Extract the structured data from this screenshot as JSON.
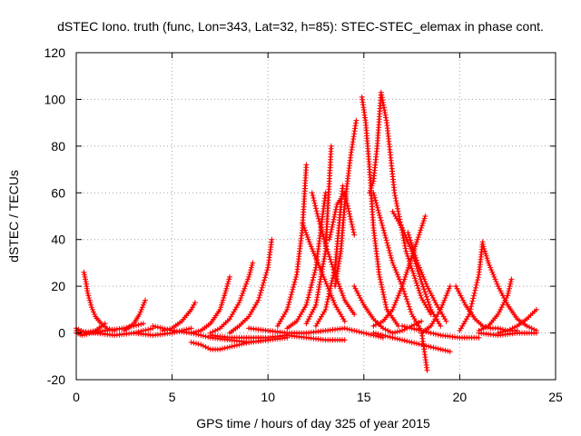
{
  "chart_data": {
    "type": "line",
    "title": "dSTEC Iono. truth (func, Lon=343, Lat=32, h=85): STEC-STEC_elemax in phase cont.",
    "xlabel": "GPS time / hours of day 325 of year 2015",
    "ylabel": "dSTEC  / TECUs",
    "xlim": [
      0,
      25
    ],
    "ylim": [
      -20,
      120
    ],
    "xticks": [
      0,
      5,
      10,
      15,
      20,
      25
    ],
    "yticks": [
      -20,
      0,
      20,
      40,
      60,
      80,
      100,
      120
    ],
    "grid": true,
    "legend": "none",
    "marker": "+",
    "color": "#ff0000",
    "series": [
      {
        "x": [
          0.0,
          0.5,
          1.0,
          1.5
        ],
        "y": [
          2,
          0,
          1,
          4
        ]
      },
      {
        "x": [
          0.0,
          0.3,
          0.8,
          1.5,
          2.5,
          3.5
        ],
        "y": [
          0,
          -1,
          0,
          1,
          2,
          4
        ]
      },
      {
        "x": [
          0.0,
          1.0,
          2.0,
          3.0,
          4.0
        ],
        "y": [
          1,
          0,
          -1,
          0,
          2
        ]
      },
      {
        "x": [
          0.4,
          0.5,
          0.6,
          0.8,
          1.0,
          1.3,
          1.6,
          2.0
        ],
        "y": [
          26,
          22,
          17,
          11,
          7,
          4,
          2,
          1
        ]
      },
      {
        "x": [
          2.5,
          3.0,
          3.3,
          3.6
        ],
        "y": [
          1,
          4,
          8,
          14
        ]
      },
      {
        "x": [
          3.0,
          4.0,
          5.0,
          6.0
        ],
        "y": [
          0,
          -1,
          0,
          2
        ]
      },
      {
        "x": [
          4.5,
          5.0,
          5.5,
          6.0,
          6.2
        ],
        "y": [
          1,
          2,
          5,
          10,
          13
        ]
      },
      {
        "x": [
          4.0,
          5.0,
          6.0,
          7.0,
          8.0,
          9.0,
          10.0
        ],
        "y": [
          3,
          1,
          0,
          -2,
          -3,
          -4,
          -3
        ]
      },
      {
        "x": [
          6.0,
          6.5,
          7.0,
          7.5,
          7.8,
          8.0
        ],
        "y": [
          0,
          1,
          4,
          10,
          18,
          24
        ]
      },
      {
        "x": [
          7.0,
          7.5,
          8.0,
          8.5,
          9.0,
          9.2
        ],
        "y": [
          0,
          2,
          6,
          13,
          24,
          30
        ]
      },
      {
        "x": [
          8.0,
          8.5,
          9.0,
          9.5,
          10.0,
          10.2
        ],
        "y": [
          0,
          3,
          7,
          14,
          28,
          40
        ]
      },
      {
        "x": [
          6.0,
          6.5,
          7.0,
          7.5,
          8.0,
          9.0,
          10.0,
          11.0
        ],
        "y": [
          -4,
          -5,
          -7,
          -7,
          -6,
          -4,
          -3,
          -2
        ]
      },
      {
        "x": [
          7.0,
          8.0,
          9.0,
          10.0,
          11.0,
          12.0,
          13.0,
          14.0
        ],
        "y": [
          -1,
          -2,
          -2,
          -2,
          -1,
          -2,
          -3,
          -3
        ]
      },
      {
        "x": [
          10.5,
          11.0,
          11.5,
          11.8,
          12.0
        ],
        "y": [
          3,
          10,
          25,
          45,
          72
        ]
      },
      {
        "x": [
          11.0,
          11.5,
          12.0,
          12.5,
          13.0
        ],
        "y": [
          2,
          5,
          12,
          28,
          60
        ]
      },
      {
        "x": [
          11.8,
          12.2,
          12.6,
          13.0,
          13.5,
          14.0
        ],
        "y": [
          47,
          38,
          30,
          22,
          12,
          5
        ]
      },
      {
        "x": [
          12.3,
          12.6,
          13.0,
          13.5,
          14.0,
          14.5
        ],
        "y": [
          60,
          50,
          38,
          25,
          14,
          8
        ]
      },
      {
        "x": [
          12.0,
          12.5,
          13.0,
          13.3
        ],
        "y": [
          4,
          12,
          35,
          80
        ]
      },
      {
        "x": [
          12.5,
          13.0,
          13.5,
          13.9
        ],
        "y": [
          3,
          10,
          28,
          63
        ]
      },
      {
        "x": [
          13.5,
          13.8,
          14.0,
          14.3,
          14.6
        ],
        "y": [
          20,
          35,
          55,
          75,
          91
        ]
      },
      {
        "x": [
          13.2,
          13.6,
          14.0,
          14.5
        ],
        "y": [
          40,
          55,
          60,
          42
        ]
      },
      {
        "x": [
          14.5,
          15.0,
          15.5,
          16.0,
          16.5,
          17.0,
          17.5,
          18.0
        ],
        "y": [
          20,
          12,
          6,
          2,
          0,
          1,
          3,
          5
        ]
      },
      {
        "x": [
          14.9,
          15.1,
          15.3,
          15.5,
          15.8,
          16.2,
          16.8
        ],
        "y": [
          101,
          90,
          70,
          45,
          25,
          10,
          3
        ]
      },
      {
        "x": [
          15.3,
          15.5,
          15.7,
          15.9,
          16.2,
          16.6,
          17.2,
          18.0,
          18.5
        ],
        "y": [
          60,
          65,
          80,
          103,
          90,
          60,
          35,
          15,
          8
        ]
      },
      {
        "x": [
          15.5,
          16.0,
          16.5,
          17.0,
          17.5,
          18.0,
          18.3
        ],
        "y": [
          60,
          45,
          30,
          20,
          8,
          1,
          -16
        ]
      },
      {
        "x": [
          16.5,
          17.0,
          17.5,
          18.0,
          18.5,
          19.0
        ],
        "y": [
          52,
          45,
          35,
          22,
          10,
          3
        ]
      },
      {
        "x": [
          17.3,
          17.8,
          18.3,
          18.8,
          19.3
        ],
        "y": [
          43,
          30,
          20,
          12,
          5
        ]
      },
      {
        "x": [
          18.2,
          17.8,
          17.4,
          17.0,
          16.5,
          16.0,
          15.5
        ],
        "y": [
          50,
          40,
          30,
          20,
          10,
          5,
          3
        ]
      },
      {
        "x": [
          15.5,
          16.5,
          17.5,
          18.5,
          19.5
        ],
        "y": [
          0,
          -2,
          -4,
          -6,
          -8
        ]
      },
      {
        "x": [
          17.0,
          18.0,
          19.0,
          20.0,
          21.0
        ],
        "y": [
          3,
          1,
          -1,
          -2,
          -2
        ]
      },
      {
        "x": [
          18.0,
          18.5,
          19.0,
          19.5
        ],
        "y": [
          0,
          3,
          10,
          20
        ]
      },
      {
        "x": [
          19.8,
          20.3,
          20.8,
          21.2,
          21.6,
          22.0,
          22.5,
          23.0
        ],
        "y": [
          20,
          12,
          6,
          3,
          2,
          2,
          1,
          1
        ]
      },
      {
        "x": [
          20.0,
          20.5,
          21.0,
          21.2
        ],
        "y": [
          1,
          8,
          25,
          39
        ]
      },
      {
        "x": [
          21.2,
          21.5,
          22.0,
          22.5,
          23.0,
          23.5,
          24.0
        ],
        "y": [
          38,
          30,
          20,
          12,
          6,
          3,
          1
        ]
      },
      {
        "x": [
          21.0,
          21.5,
          22.0,
          22.5,
          22.7
        ],
        "y": [
          1,
          3,
          8,
          16,
          23
        ]
      },
      {
        "x": [
          22.0,
          22.5,
          23.0,
          23.5,
          24.0
        ],
        "y": [
          0,
          1,
          3,
          6,
          10
        ]
      },
      {
        "x": [
          21.0,
          22.0,
          23.0,
          24.0
        ],
        "y": [
          0,
          -1,
          0,
          0
        ]
      },
      {
        "x": [
          9.0,
          10.0,
          11.0,
          12.0,
          13.0,
          14.0,
          15.0,
          16.0
        ],
        "y": [
          2,
          1,
          0,
          0,
          1,
          2,
          0,
          -2
        ]
      }
    ]
  }
}
